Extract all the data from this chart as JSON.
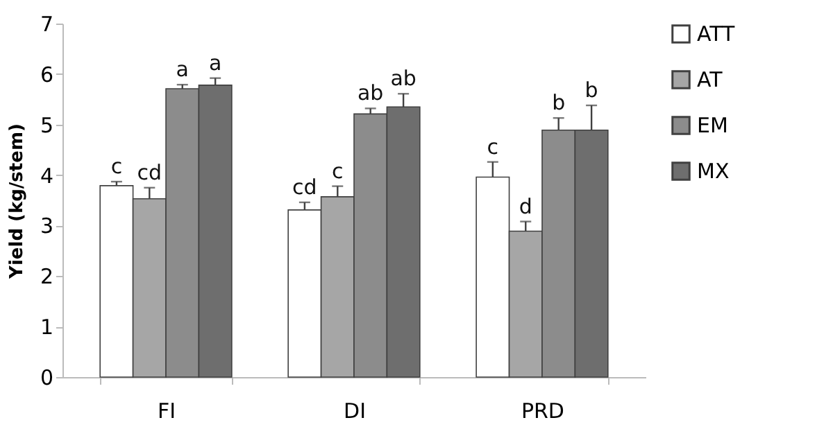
{
  "chart_data": {
    "type": "bar",
    "ylabel": "Yield (kg/stem)",
    "categories": [
      "FI",
      "DI",
      "PRD"
    ],
    "series": [
      {
        "name": "ATT",
        "color": "#ffffff",
        "values": [
          3.79,
          3.31,
          3.96
        ],
        "errors": [
          [
            3.79,
            3.87
          ],
          [
            3.31,
            3.46
          ],
          [
            3.96,
            4.26
          ]
        ],
        "value_labels": [
          "c",
          "cd",
          "c"
        ]
      },
      {
        "name": "AT",
        "color": "#a6a6a6",
        "values": [
          3.53,
          3.57,
          2.89
        ],
        "errors": [
          [
            3.53,
            3.75
          ],
          [
            3.57,
            3.78
          ],
          [
            2.89,
            3.08
          ]
        ],
        "value_labels": [
          "cd",
          "c",
          "d"
        ]
      },
      {
        "name": "EM",
        "color": "#8c8c8c",
        "values": [
          5.71,
          5.21,
          4.89
        ],
        "errors": [
          [
            5.71,
            5.79
          ],
          [
            5.21,
            5.32
          ],
          [
            4.89,
            5.13
          ]
        ],
        "value_labels": [
          "a",
          "ab",
          "b"
        ]
      },
      {
        "name": "MX",
        "color": "#6e6e6e",
        "values": [
          5.78,
          5.35,
          4.89
        ],
        "errors": [
          [
            5.78,
            5.92
          ],
          [
            5.35,
            5.61
          ],
          [
            4.89,
            5.38
          ]
        ],
        "value_labels": [
          "a",
          "ab",
          "b"
        ]
      }
    ],
    "ylim": [
      0,
      7
    ],
    "yticks": [
      0,
      1,
      2,
      3,
      4,
      5,
      6,
      7
    ],
    "grid": false,
    "legend": "right"
  }
}
